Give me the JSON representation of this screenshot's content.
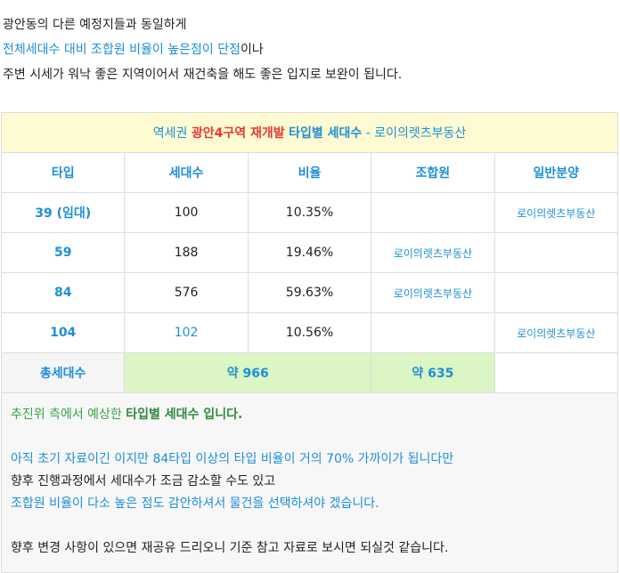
{
  "intro": {
    "line1": "광안동의 다른 예정지들과 동일하게",
    "line2_highlight": "전체세대수 대비 조합원 비율이 높은점이 단점",
    "line2_rest": "이나",
    "line3": "주변 시세가 워낙 좋은 지역이어서 재건축을 해도 좋은 입지로 보완이 됩니다."
  },
  "table": {
    "title": {
      "part1": "역세권",
      "part2": "광안4구역 재개발",
      "part3": "타입별 세대수",
      "part4": "- 로이의렛츠부동산"
    },
    "header": [
      "타입",
      "세대수",
      "비율",
      "조합원",
      "일반분양"
    ],
    "rows": [
      [
        "39 (임대)",
        "100",
        "10.35%",
        null,
        "로이의렛츠부동산"
      ],
      [
        "59",
        "188",
        "19.46%",
        "로이의렛츠부동산",
        null
      ],
      [
        "84",
        "576",
        "59.63%",
        "로이의렛츠부동산",
        null
      ],
      [
        "104",
        "102",
        "10.56%",
        null,
        "로이의렛츠부동산"
      ]
    ],
    "total": {
      "label": "총세대수",
      "households": "약 966",
      "members": "약 635"
    }
  },
  "note": {
    "line1a": "추진위 측에서 예상한",
    "line1b": "타입별 세대수 입니다.",
    "line2": "아직 초기 자료이긴 이지만 84타입 이상의 타입 비율이 거의 70% 가까이가 됩니다만",
    "line3": "향후 진행과정에서 세대수가 조금 감소할 수도 있고",
    "line4": "조합원 비율이 다소 높은 점도 감안하셔서 물건을 선택하셔야 겠습니다.",
    "line5": "향후 변경 사항이 있으면 재공유 드리오니 기준 참고 자료로 보시면 되실것 같습니다."
  }
}
